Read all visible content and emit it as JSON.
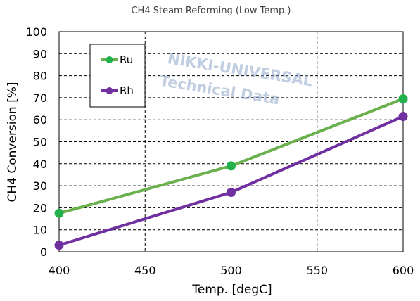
{
  "chart_data": {
    "type": "line",
    "title": "CH4 Steam Reforming (Low Temp.)",
    "xlabel": "Temp.   [degC]",
    "ylabel": "CH4  Conversion  [%]",
    "xlim": [
      400,
      600
    ],
    "ylim": [
      0,
      100
    ],
    "xticks": [
      400,
      450,
      500,
      550,
      600
    ],
    "yticks": [
      0,
      10,
      20,
      30,
      40,
      50,
      60,
      70,
      80,
      90,
      100
    ],
    "grid": true,
    "legend_position": "top-left",
    "series": [
      {
        "name": "Ru",
        "color": "#6ab04c",
        "marker_color": "#22b14c",
        "x": [
          400,
          500,
          600
        ],
        "y": [
          17.5,
          39,
          69.5
        ]
      },
      {
        "name": "Rh",
        "color": "#7030a0",
        "marker_color": "#7030a0",
        "x": [
          400,
          500,
          600
        ],
        "y": [
          3,
          27,
          61.5
        ]
      }
    ],
    "watermark": [
      "NIKKI-UNIVERSAL",
      "Technical Data"
    ]
  }
}
